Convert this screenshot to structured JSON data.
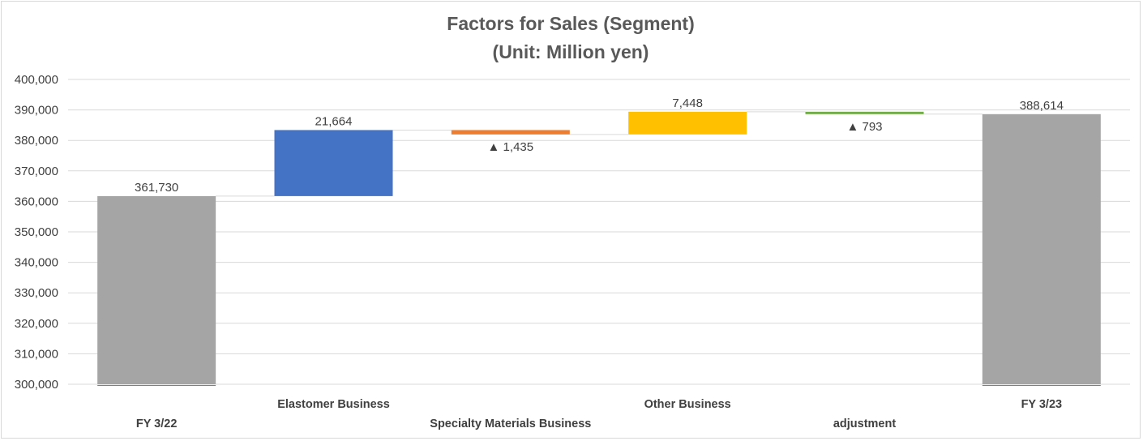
{
  "chart_data": {
    "type": "bar",
    "subtype": "waterfall",
    "title_line1": "Factors for Sales (Segment)",
    "title_line2": "(Unit: Million yen)",
    "ylim": [
      300000,
      400000
    ],
    "y_ticks": [
      "300,000",
      "310,000",
      "320,000",
      "330,000",
      "340,000",
      "350,000",
      "360,000",
      "370,000",
      "380,000",
      "390,000",
      "400,000"
    ],
    "y_tick_values": [
      300000,
      310000,
      320000,
      330000,
      340000,
      350000,
      360000,
      370000,
      380000,
      390000,
      400000
    ],
    "grid": true,
    "categories": [
      "FY 3/22",
      "Elastomer Business",
      "Specialty  Materials Business",
      "Other Business",
      "adjustment",
      "FY 3/23"
    ],
    "bars": [
      {
        "category": "FY 3/22",
        "kind": "total",
        "start": 300000,
        "end": 361730,
        "label": "361,730",
        "color": "#a5a5a5"
      },
      {
        "category": "Elastomer Business",
        "kind": "increase",
        "start": 361730,
        "end": 383394,
        "label": "21,664",
        "color": "#4472c4"
      },
      {
        "category": "Specialty  Materials Business",
        "kind": "decrease",
        "start": 383394,
        "end": 381959,
        "label": "▲ 1,435",
        "color": "#ed7d31"
      },
      {
        "category": "Other Business",
        "kind": "increase",
        "start": 381959,
        "end": 389407,
        "label": "7,448",
        "color": "#ffc000"
      },
      {
        "category": "adjustment",
        "kind": "decrease",
        "start": 389407,
        "end": 388614,
        "label": "▲ 793",
        "color": "#70ad47"
      },
      {
        "category": "FY 3/23",
        "kind": "total",
        "start": 300000,
        "end": 388614,
        "label": "388,614",
        "color": "#a5a5a5"
      }
    ]
  }
}
